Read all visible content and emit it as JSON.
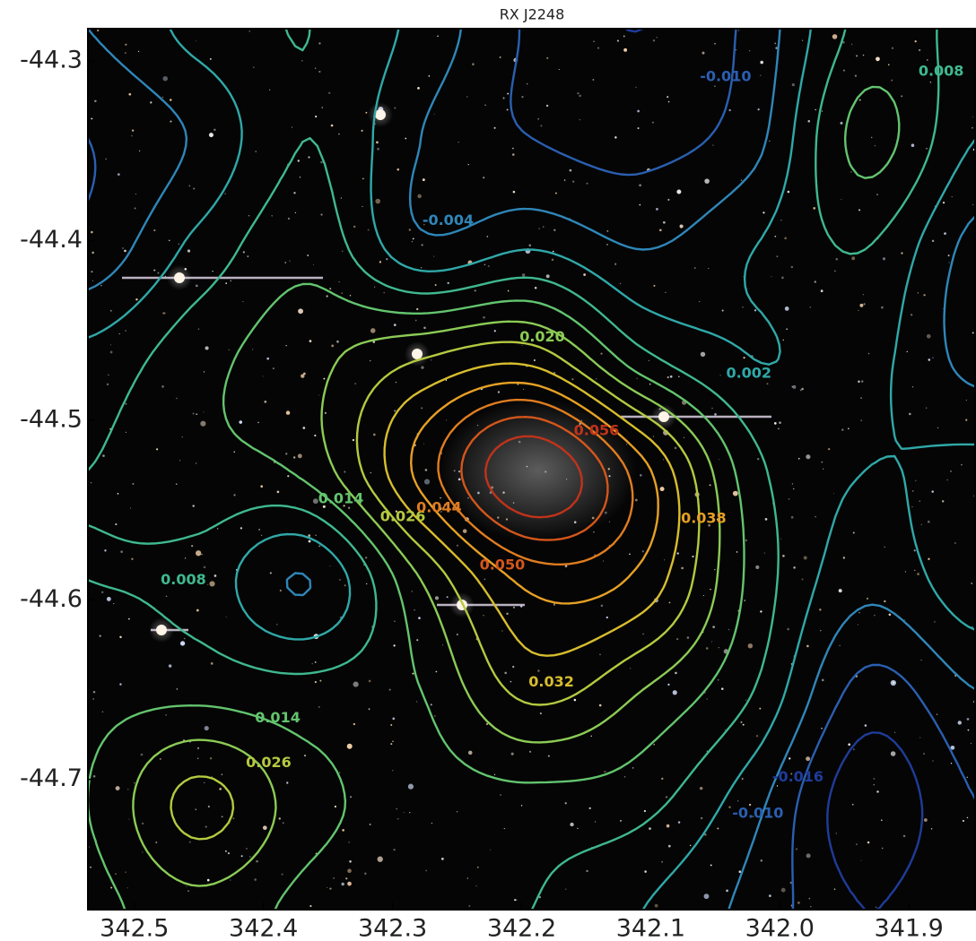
{
  "chart_data": {
    "type": "contour",
    "title": "RX J2248",
    "xlim": [
      342.536,
      341.848
    ],
    "ylim": [
      -44.7725,
      -44.282
    ],
    "xticks": [
      342.5,
      342.4,
      342.3,
      342.2,
      342.1,
      {
        "value": 342,
        "label": "342.0"
      },
      341.9
    ],
    "yticks": [
      -44.3,
      -44.4,
      -44.5,
      -44.6,
      -44.7
    ],
    "grid_x": [
      342.536,
      342.45,
      342.364,
      342.278,
      342.192,
      342.106,
      342.02,
      341.934,
      341.848
    ],
    "grid_y": [
      -44.282,
      -44.343,
      -44.405,
      -44.466,
      -44.528,
      -44.589,
      -44.65,
      -44.712,
      -44.7725
    ],
    "z": [
      [
        -0.004,
        0.004,
        0.008,
        0.0,
        -0.011,
        -0.016,
        -0.008,
        0.01,
        0.006
      ],
      [
        -0.01,
        -0.003,
        0.008,
        -0.004,
        -0.01,
        -0.012,
        -0.006,
        0.016,
        0.002
      ],
      [
        -0.008,
        0.004,
        0.012,
        -0.002,
        0.002,
        -0.004,
        0.002,
        0.008,
        -0.006
      ],
      [
        0.004,
        0.012,
        0.018,
        0.026,
        0.03,
        0.01,
        0.002,
        0.004,
        -0.006
      ],
      [
        0.008,
        0.012,
        0.016,
        0.04,
        0.062,
        0.04,
        0.01,
        0.002,
        0.004
      ],
      [
        0.008,
        0.006,
        -0.004,
        0.02,
        0.04,
        0.036,
        0.012,
        -0.002,
        0.006
      ],
      [
        0.012,
        0.012,
        0.01,
        0.014,
        0.028,
        0.02,
        0.008,
        -0.012,
        -0.004
      ],
      [
        0.014,
        0.028,
        0.016,
        0.012,
        0.012,
        0.01,
        -0.002,
        -0.02,
        -0.01
      ],
      [
        0.012,
        0.018,
        0.012,
        0.01,
        0.008,
        0.002,
        -0.006,
        -0.016,
        -0.01
      ]
    ],
    "levels": [
      -0.016,
      -0.01,
      -0.004,
      0.002,
      0.008,
      0.014,
      0.02,
      0.026,
      0.032,
      0.038,
      0.044,
      0.05,
      0.056
    ],
    "colors": [
      "#1e3c9a",
      "#2a5fb0",
      "#2f86b8",
      "#30a8a8",
      "#3fb890",
      "#63c46e",
      "#8ccb55",
      "#b5c940",
      "#d7bd2e",
      "#e6a025",
      "#e07d1f",
      "#d4561b",
      "#c0331a"
    ],
    "contour_labels": [
      {
        "value": -0.01,
        "label": "-0.010",
        "x": 342.042,
        "y": -44.309,
        "color": "#2a5fb0"
      },
      {
        "value": 0.008,
        "label": "0.008",
        "x": 341.875,
        "y": -44.306,
        "color": "#3fb890"
      },
      {
        "value": -0.004,
        "label": "-0.004",
        "x": 342.257,
        "y": -44.389,
        "color": "#2f86b8"
      },
      {
        "value": 0.02,
        "label": "0.020",
        "x": 342.184,
        "y": -44.454,
        "color": "#8ccb55"
      },
      {
        "value": 0.002,
        "label": "0.002",
        "x": 342.024,
        "y": -44.474,
        "color": "#30a8a8"
      },
      {
        "value": 0.056,
        "label": "0.056",
        "x": 342.142,
        "y": -44.506,
        "color": "#c0331a"
      },
      {
        "value": 0.014,
        "label": "0.014",
        "x": 342.34,
        "y": -44.544,
        "color": "#63c46e"
      },
      {
        "value": 0.026,
        "label": "0.026",
        "x": 342.292,
        "y": -44.554,
        "color": "#b5c940"
      },
      {
        "value": 0.044,
        "label": "0.044",
        "x": 342.264,
        "y": -44.549,
        "color": "#e07d1f"
      },
      {
        "value": 0.038,
        "label": "0.038",
        "x": 342.059,
        "y": -44.555,
        "color": "#e6a025"
      },
      {
        "value": 0.05,
        "label": "0.050",
        "x": 342.215,
        "y": -44.581,
        "color": "#d4561b"
      },
      {
        "value": 0.008,
        "label": "0.008",
        "x": 342.462,
        "y": -44.589,
        "color": "#3fb890"
      },
      {
        "value": 0.032,
        "label": "0.032",
        "x": 342.177,
        "y": -44.646,
        "color": "#d7bd2e"
      },
      {
        "value": 0.014,
        "label": "0.014",
        "x": 342.389,
        "y": -44.666,
        "color": "#63c46e"
      },
      {
        "value": 0.026,
        "label": "0.026",
        "x": 342.396,
        "y": -44.691,
        "color": "#b5c940"
      },
      {
        "value": -0.01,
        "label": "-0.010",
        "x": 342.017,
        "y": -44.719,
        "color": "#2a5fb0"
      },
      {
        "value": -0.016,
        "label": "-0.016",
        "x": 341.986,
        "y": -44.699,
        "color": "#1e3c9a"
      }
    ]
  }
}
